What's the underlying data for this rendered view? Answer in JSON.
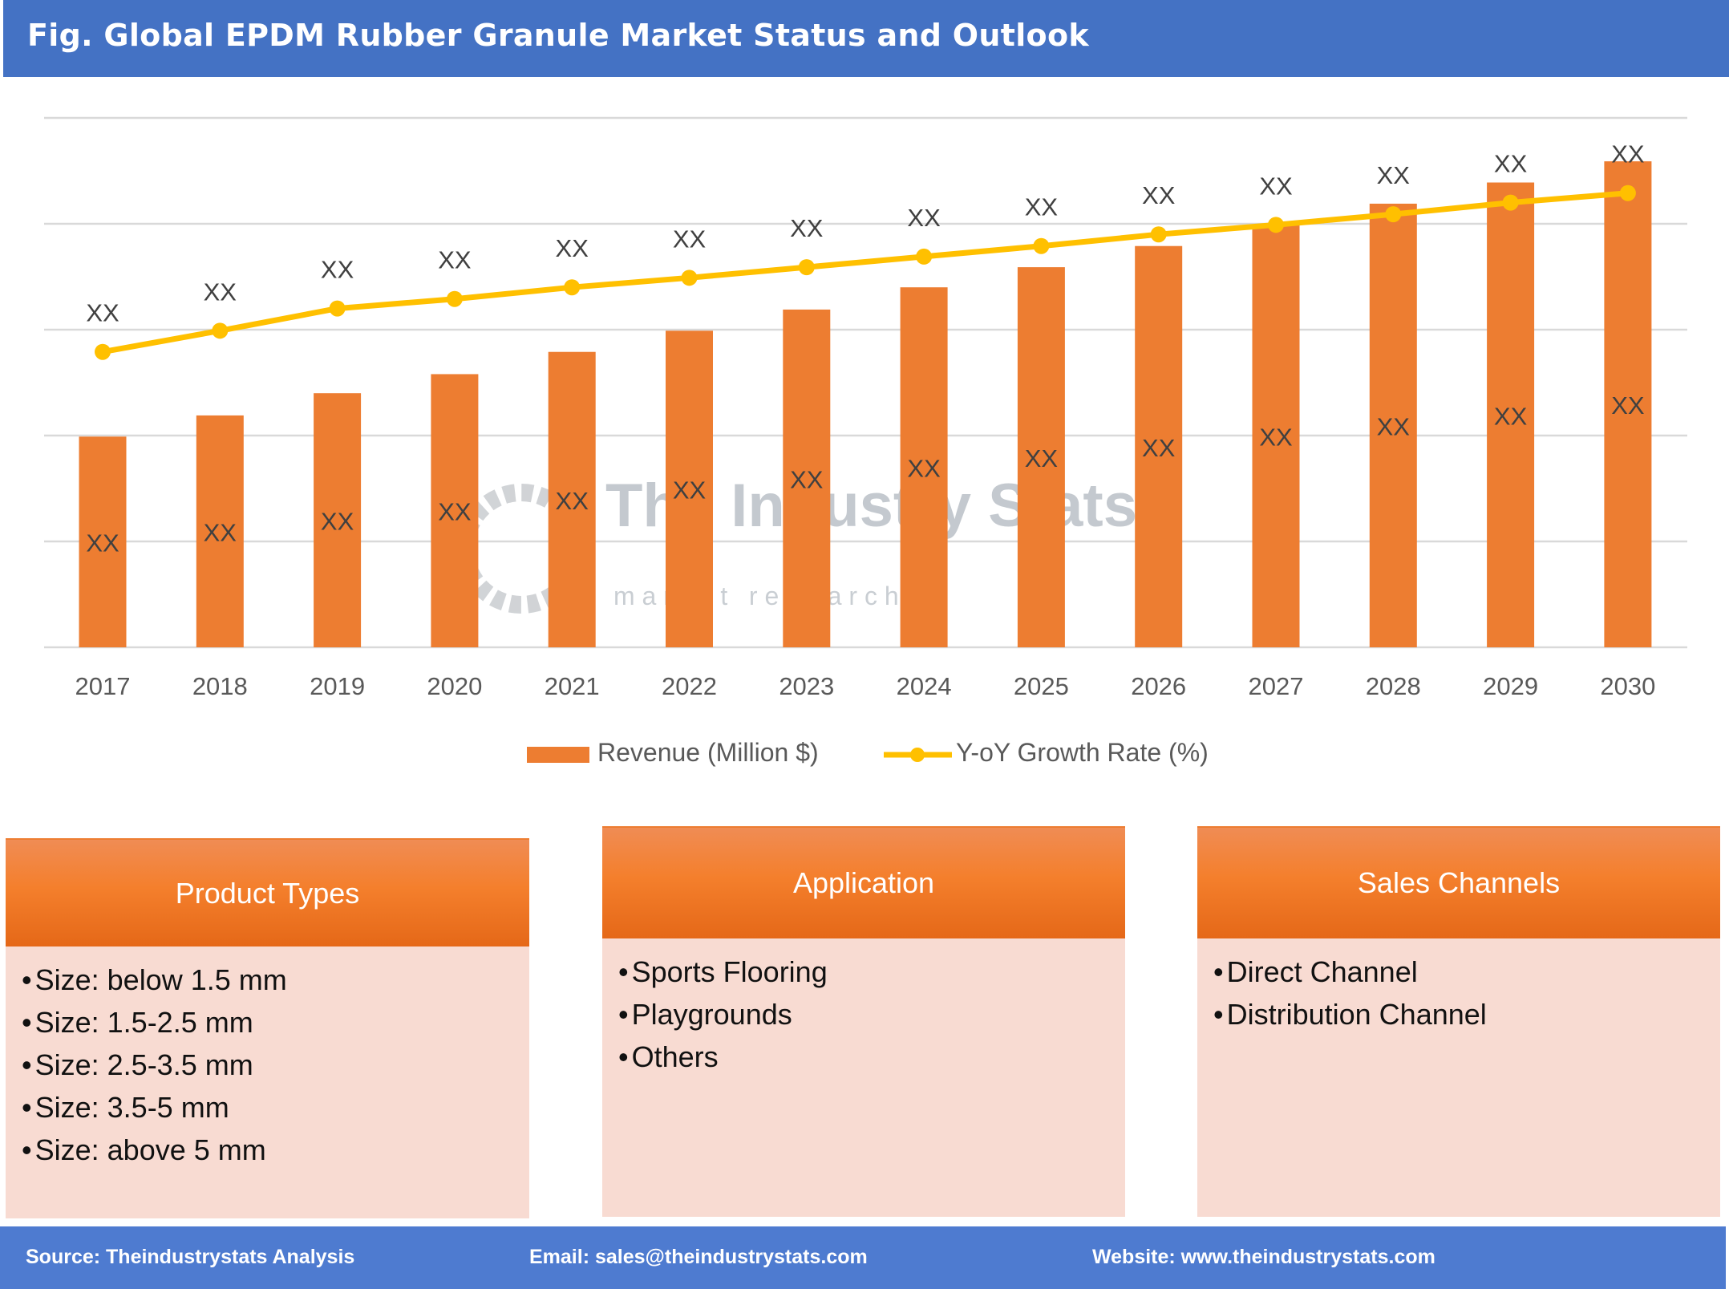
{
  "header": {
    "title": "Fig. Global EPDM Rubber Granule Market Status and Outlook"
  },
  "watermark": {
    "name": "The Industry Stats",
    "tagline": "m a r k e t   r e s e a r c h"
  },
  "chart_data": {
    "type": "bar+line",
    "categories": [
      "2017",
      "2018",
      "2019",
      "2020",
      "2021",
      "2022",
      "2023",
      "2024",
      "2025",
      "2026",
      "2027",
      "2028",
      "2029",
      "2030"
    ],
    "series": [
      {
        "name": "Revenue (Million $)",
        "type": "bar",
        "color": "#ed7d31",
        "values": [
          1.99,
          2.19,
          2.4,
          2.58,
          2.79,
          2.99,
          3.19,
          3.4,
          3.59,
          3.79,
          3.99,
          4.19,
          4.39,
          4.59
        ],
        "labels": [
          "XX",
          "XX",
          "XX",
          "XX",
          "XX",
          "XX",
          "XX",
          "XX",
          "XX",
          "XX",
          "XX",
          "XX",
          "XX",
          "XX"
        ]
      },
      {
        "name": "Y-oY Growth Rate (%)",
        "type": "line",
        "color": "#ffc000",
        "values": [
          2.79,
          2.99,
          3.2,
          3.29,
          3.4,
          3.49,
          3.59,
          3.69,
          3.79,
          3.9,
          3.99,
          4.09,
          4.2,
          4.29
        ],
        "labels": [
          "XX",
          "XX",
          "XX",
          "XX",
          "XX",
          "XX",
          "XX",
          "XX",
          "XX",
          "XX",
          "XX",
          "XX",
          "XX",
          "XX"
        ]
      }
    ],
    "ylim": [
      0,
      5
    ],
    "grid": true,
    "y_tick_labels": false,
    "legend": "bottom"
  },
  "boxes": [
    {
      "title": "Product Types",
      "items": [
        "Size: below 1.5 mm",
        "Size: 1.5-2.5 mm",
        "Size: 2.5-3.5 mm",
        "Size: 3.5-5 mm",
        "Size: above 5 mm"
      ]
    },
    {
      "title": "Application",
      "items": [
        "Sports Flooring",
        "Playgrounds",
        "Others"
      ]
    },
    {
      "title": "Sales Channels",
      "items": [
        "Direct Channel",
        "Distribution Channel"
      ]
    }
  ],
  "footer": {
    "source": "Source: Theindustrystats Analysis",
    "email": "Email: sales@theindustrystats.com",
    "website": "Website: www.theindustrystats.com"
  }
}
